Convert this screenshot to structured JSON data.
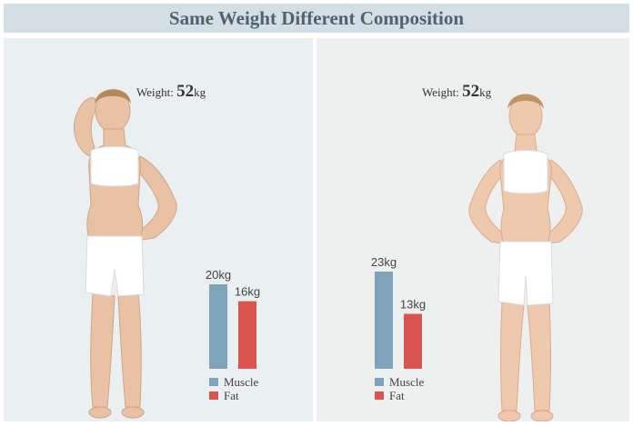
{
  "title": "Same Weight Different Composition",
  "panels": [
    {
      "weight_label": "Weight:",
      "weight_value": "52",
      "weight_unit": "kg"
    },
    {
      "weight_label": "Weight:",
      "weight_value": "52",
      "weight_unit": "kg"
    }
  ],
  "colors": {
    "muscle": "#7fa3b8",
    "fat": "#d9534f",
    "title_bg": "#d4dee5",
    "title_text": "#4f6270"
  },
  "chart_data": [
    {
      "type": "bar",
      "categories": [
        "Muscle",
        "Fat"
      ],
      "values": [
        20,
        16
      ],
      "value_labels": [
        "20kg",
        "16kg"
      ],
      "legend": [
        "Muscle",
        "Fat"
      ],
      "ylim": [
        0,
        25
      ]
    },
    {
      "type": "bar",
      "categories": [
        "Muscle",
        "Fat"
      ],
      "values": [
        23,
        13
      ],
      "value_labels": [
        "23kg",
        "13kg"
      ],
      "legend": [
        "Muscle",
        "Fat"
      ],
      "ylim": [
        0,
        25
      ]
    }
  ]
}
